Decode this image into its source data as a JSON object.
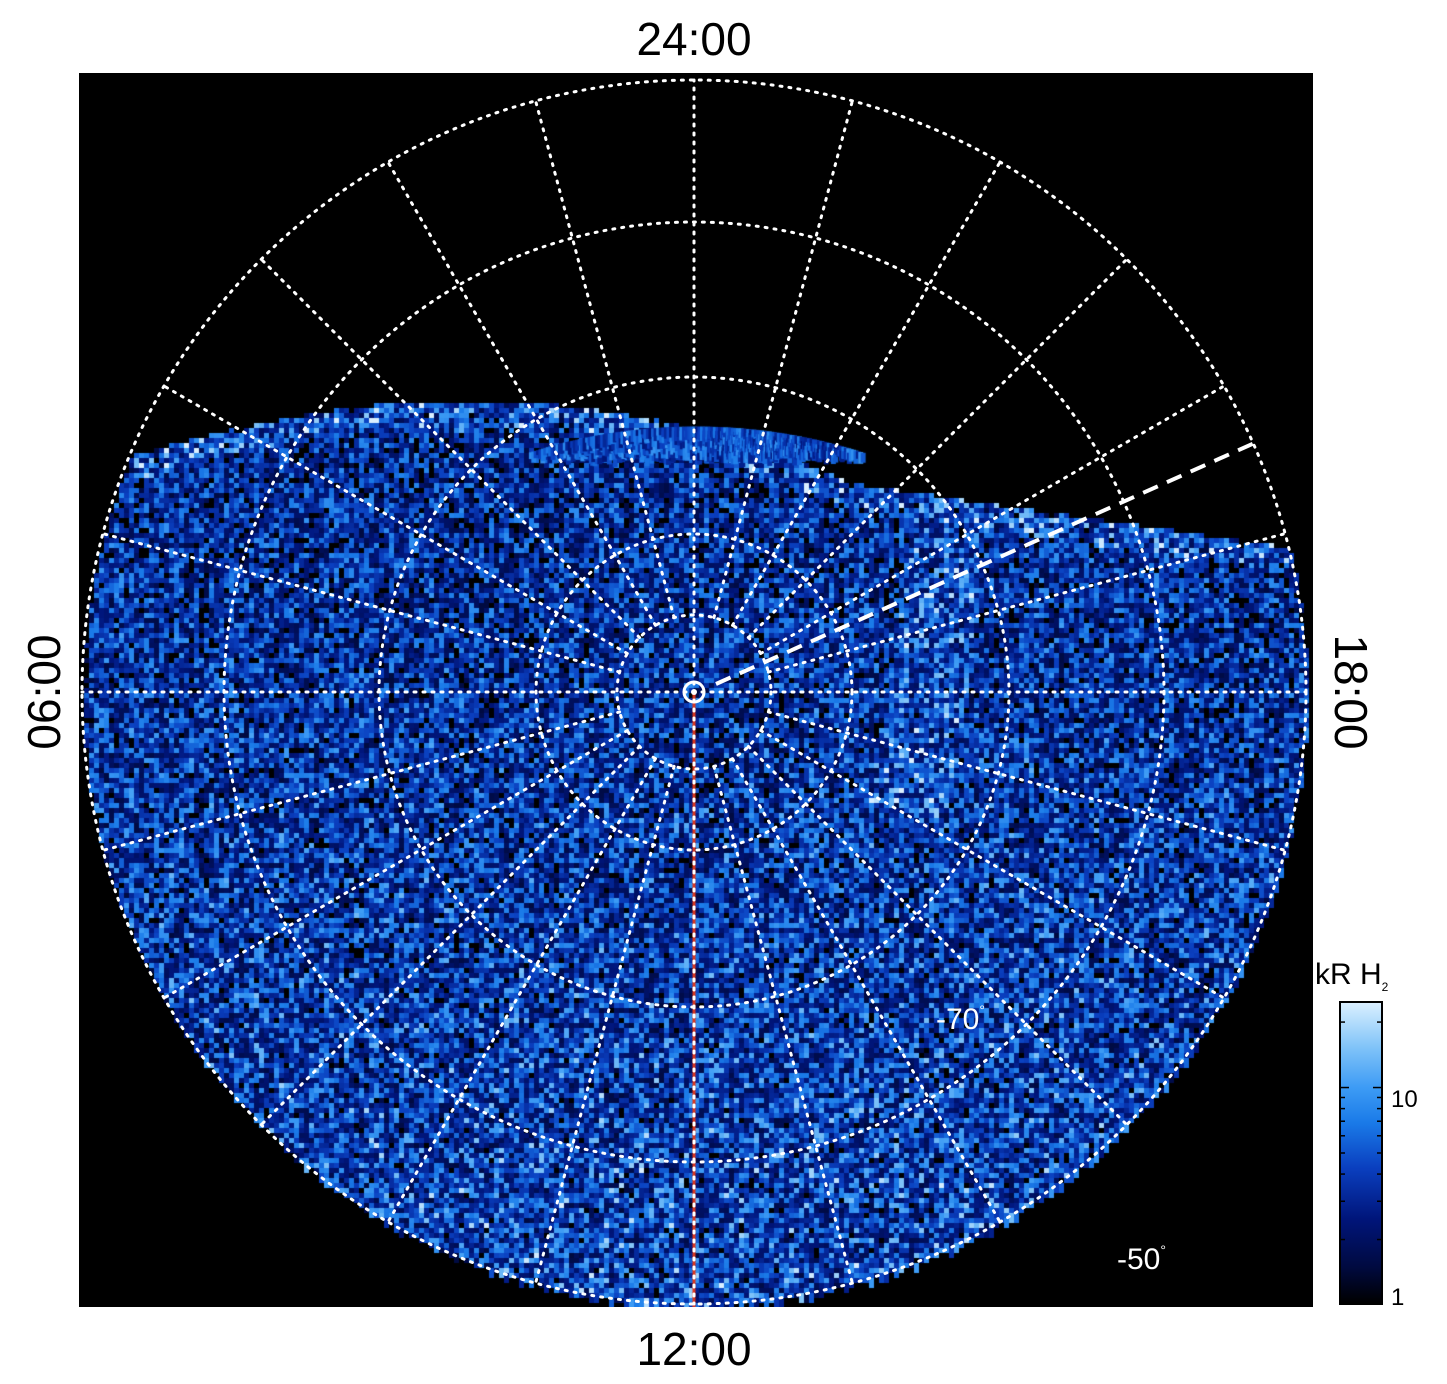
{
  "figure": {
    "local_time_labels": {
      "top": "24:00",
      "bottom": "12:00",
      "left": "06:00",
      "right": "18:00"
    },
    "latitude_labels": {
      "inner": "-70",
      "outer": "-50",
      "degree_symbol": "°"
    },
    "colorbar": {
      "unit": "kR H",
      "unit_subscript": "2",
      "ticks": [
        "10",
        "1"
      ],
      "scale": "log"
    },
    "colors": {
      "background": "#000000",
      "grid": "#ffffff",
      "noon_meridian_line": "#e0381e",
      "aurora_bright": "#cde9ff",
      "aurora_mid": "#2a86f0",
      "aurora_dim": "#0a1e8a"
    }
  }
}
